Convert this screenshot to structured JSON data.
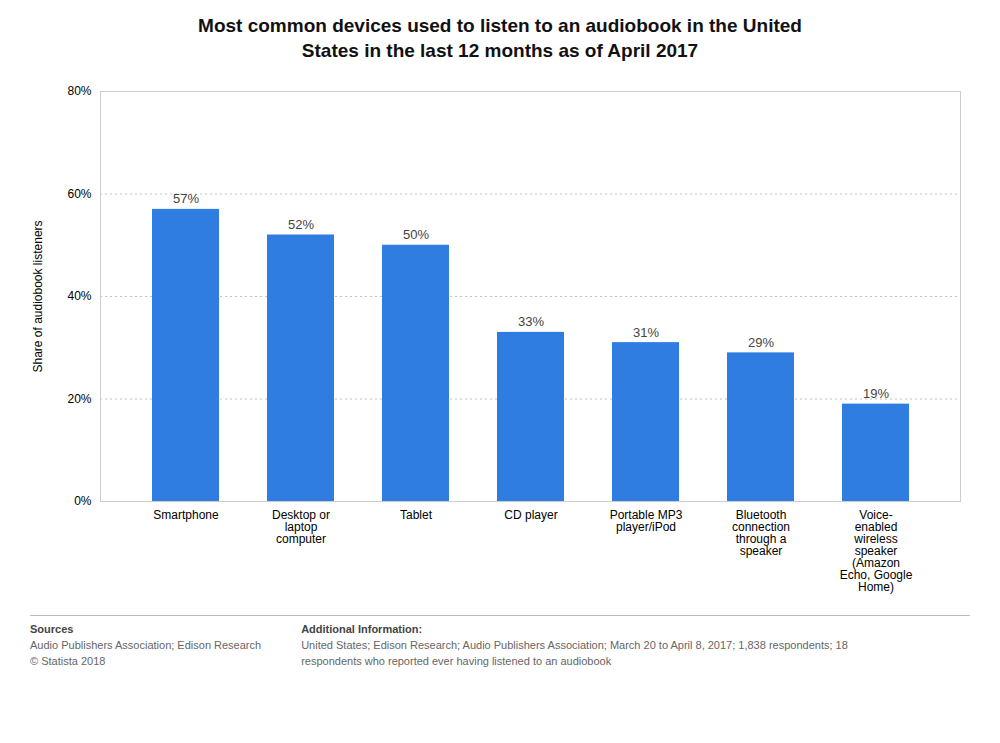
{
  "chart_data": {
    "type": "bar",
    "title": "Most common devices used to listen to an audiobook in the United\nStates in the last 12 months as of April 2017",
    "categories": [
      "Smartphone",
      "Desktop or\nlaptop\ncomputer",
      "Tablet",
      "CD player",
      "Portable MP3\nplayer/iPod",
      "Bluetooth\nconnection\nthrough a\nspeaker",
      "Voice-\nenabled\nwireless\nspeaker\n(Amazon\nEcho, Google\nHome)"
    ],
    "values": [
      57,
      52,
      50,
      33,
      31,
      29,
      19
    ],
    "value_labels": [
      "57%",
      "52%",
      "50%",
      "33%",
      "31%",
      "29%",
      "19%"
    ],
    "data_labels": true,
    "color": "#2f7de1",
    "ylabel": "Share of audiobook listeners",
    "ylim": [
      0,
      80
    ],
    "yticks": [
      {
        "value": 0,
        "label": "0%"
      },
      {
        "value": 20,
        "label": "20%"
      },
      {
        "value": 40,
        "label": "40%"
      },
      {
        "value": 60,
        "label": "60%"
      },
      {
        "value": 80,
        "label": "80%"
      }
    ],
    "grid": true,
    "annotations": [
      "Sources",
      "Audio Publishers Association; Edison Research\n© Statista 2018",
      "Additional Information:",
      "United States; Edison Research; Audio Publishers Association; March 20 to April 8, 2017; 1,838 respondents; 18\nrespondents who reported ever having listened to an audiobook"
    ]
  }
}
